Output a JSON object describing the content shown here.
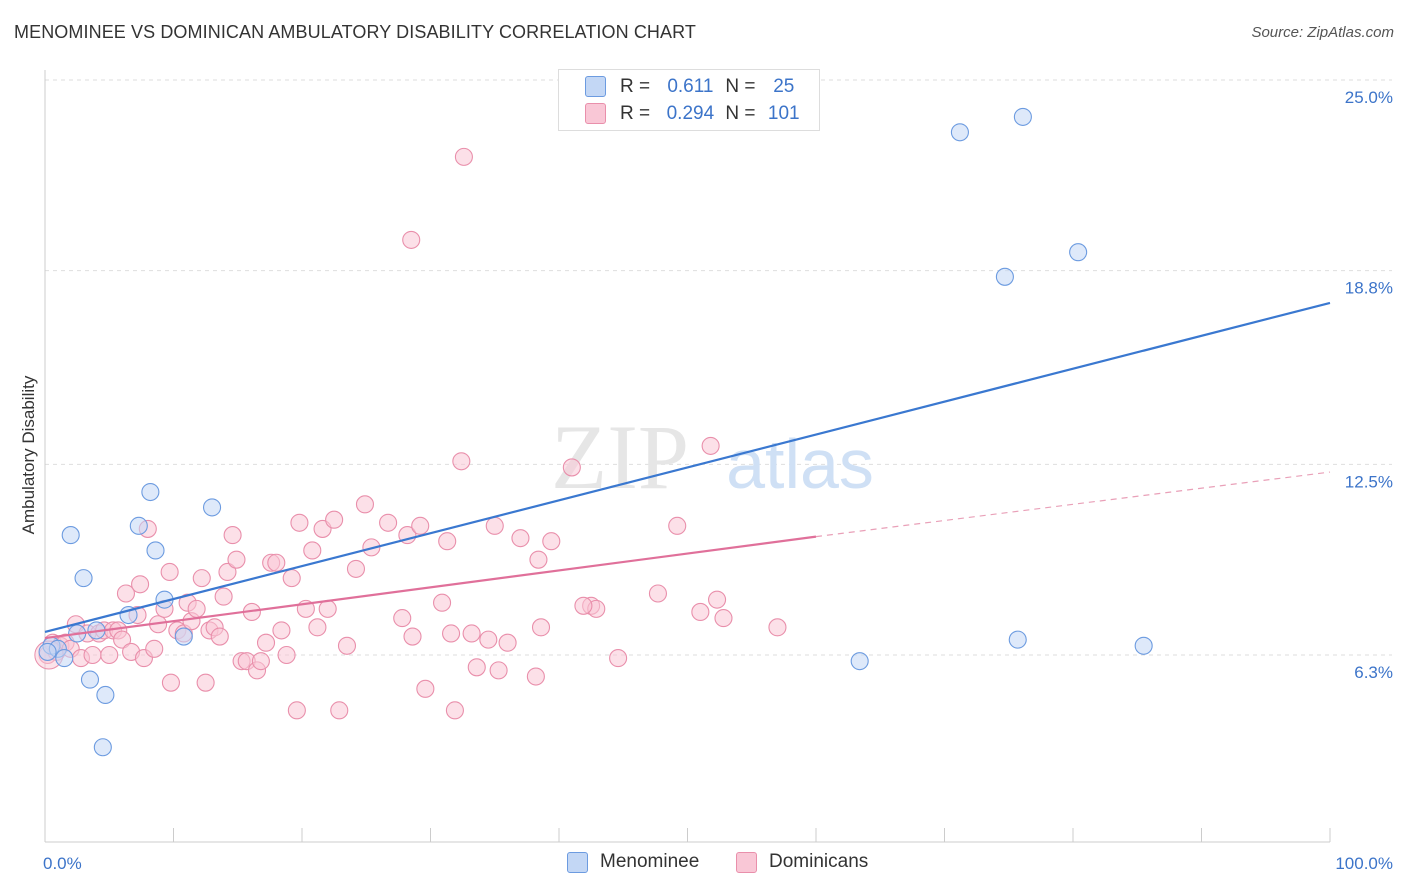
{
  "title": "MENOMINEE VS DOMINICAN AMBULATORY DISABILITY CORRELATION CHART",
  "source": "Source: ZipAtlas.com",
  "watermark": {
    "zip": "ZIP",
    "atlas": "atlas"
  },
  "legend_top": [
    {
      "r_label": "R =",
      "r_value": "0.611",
      "n_label": "N =",
      "n_value": "25",
      "color": "#6c9be0"
    },
    {
      "r_label": "R =",
      "r_value": "0.294",
      "n_label": "N =",
      "n_value": "101",
      "color": "#e98fab"
    }
  ],
  "chart_data": {
    "type": "scatter",
    "title": "MENOMINEE VS DOMINICAN AMBULATORY DISABILITY CORRELATION CHART",
    "xlabel": "",
    "ylabel": "Ambulatory Disability",
    "xlim": [
      0,
      100
    ],
    "ylim": [
      0.6,
      26.2
    ],
    "x_tick_labels": [
      "0.0%",
      "100.0%"
    ],
    "y_ticks": [
      6.3,
      12.5,
      18.8,
      25.0
    ],
    "y_tick_labels": [
      "6.3%",
      "12.5%",
      "18.8%",
      "25.0%"
    ],
    "grid": true,
    "legend_position": "bottom-center",
    "series": [
      {
        "name": "Menominee",
        "color": "#6c9be0",
        "fill": "#c3d7f5",
        "trend": {
          "x": [
            0,
            100
          ],
          "y": [
            7.05,
            17.75
          ],
          "dashed_extension": false
        },
        "points": [
          [
            0.5,
            6.6
          ],
          [
            1.0,
            6.5
          ],
          [
            1.5,
            6.2
          ],
          [
            2.0,
            10.2
          ],
          [
            2.5,
            7.0
          ],
          [
            3.0,
            8.8
          ],
          [
            3.5,
            5.5
          ],
          [
            4.0,
            7.1
          ],
          [
            4.5,
            3.3
          ],
          [
            4.7,
            5.0
          ],
          [
            6.5,
            7.6
          ],
          [
            7.3,
            10.5
          ],
          [
            8.2,
            11.6
          ],
          [
            8.6,
            9.7
          ],
          [
            9.3,
            8.1
          ],
          [
            10.8,
            6.9
          ],
          [
            13.0,
            11.1
          ],
          [
            63.4,
            6.1
          ],
          [
            71.2,
            23.3
          ],
          [
            74.7,
            18.6
          ],
          [
            75.7,
            6.8
          ],
          [
            76.1,
            23.8
          ],
          [
            80.4,
            19.4
          ],
          [
            85.5,
            6.6
          ],
          [
            0.2,
            6.4
          ]
        ]
      },
      {
        "name": "Dominicans",
        "color": "#e98fab",
        "fill": "#f9c7d6",
        "trend": {
          "x": [
            0,
            60
          ],
          "y": [
            6.85,
            10.15
          ],
          "dashed_extension": true,
          "dashed_to": {
            "x": 100,
            "y": 12.25
          }
        },
        "points": [
          [
            0.2,
            6.3
          ],
          [
            0.6,
            6.7
          ],
          [
            0.9,
            6.4
          ],
          [
            1.2,
            6.6
          ],
          [
            1.6,
            6.7
          ],
          [
            2.0,
            6.5
          ],
          [
            2.4,
            7.3
          ],
          [
            2.8,
            6.2
          ],
          [
            3.3,
            7.0
          ],
          [
            3.7,
            6.3
          ],
          [
            4.2,
            7.0
          ],
          [
            4.6,
            7.1
          ],
          [
            5.0,
            6.3
          ],
          [
            5.3,
            7.1
          ],
          [
            5.7,
            7.1
          ],
          [
            6.0,
            6.8
          ],
          [
            6.3,
            8.3
          ],
          [
            6.7,
            6.4
          ],
          [
            7.2,
            7.6
          ],
          [
            7.4,
            8.6
          ],
          [
            7.7,
            6.2
          ],
          [
            8.0,
            10.4
          ],
          [
            8.5,
            6.5
          ],
          [
            8.8,
            7.3
          ],
          [
            9.3,
            7.8
          ],
          [
            9.7,
            9.0
          ],
          [
            9.8,
            5.4
          ],
          [
            10.3,
            7.1
          ],
          [
            10.8,
            7.0
          ],
          [
            11.1,
            8.0
          ],
          [
            11.4,
            7.4
          ],
          [
            11.8,
            7.8
          ],
          [
            12.2,
            8.8
          ],
          [
            12.5,
            5.4
          ],
          [
            12.8,
            7.1
          ],
          [
            13.2,
            7.2
          ],
          [
            13.6,
            6.9
          ],
          [
            13.9,
            8.2
          ],
          [
            14.2,
            9.0
          ],
          [
            14.6,
            10.2
          ],
          [
            14.9,
            9.4
          ],
          [
            15.3,
            6.1
          ],
          [
            15.7,
            6.1
          ],
          [
            16.1,
            7.7
          ],
          [
            16.5,
            5.8
          ],
          [
            16.8,
            6.1
          ],
          [
            17.2,
            6.7
          ],
          [
            17.6,
            9.3
          ],
          [
            18.0,
            9.3
          ],
          [
            18.4,
            7.1
          ],
          [
            18.8,
            6.3
          ],
          [
            19.2,
            8.8
          ],
          [
            19.6,
            4.5
          ],
          [
            19.8,
            10.6
          ],
          [
            20.3,
            7.8
          ],
          [
            20.8,
            9.7
          ],
          [
            21.2,
            7.2
          ],
          [
            21.6,
            10.4
          ],
          [
            22.0,
            7.8
          ],
          [
            22.5,
            10.7
          ],
          [
            22.9,
            4.5
          ],
          [
            23.5,
            6.6
          ],
          [
            24.2,
            9.1
          ],
          [
            24.9,
            11.2
          ],
          [
            25.4,
            9.8
          ],
          [
            26.7,
            10.6
          ],
          [
            27.8,
            7.5
          ],
          [
            28.2,
            10.2
          ],
          [
            28.5,
            19.8
          ],
          [
            29.2,
            10.5
          ],
          [
            29.6,
            5.2
          ],
          [
            30.9,
            8.0
          ],
          [
            31.3,
            10.0
          ],
          [
            31.6,
            7.0
          ],
          [
            31.9,
            4.5
          ],
          [
            32.4,
            12.6
          ],
          [
            32.6,
            22.5
          ],
          [
            33.2,
            7.0
          ],
          [
            33.6,
            5.9
          ],
          [
            34.5,
            6.8
          ],
          [
            35.0,
            10.5
          ],
          [
            35.3,
            5.8
          ],
          [
            36.0,
            6.7
          ],
          [
            37.0,
            10.1
          ],
          [
            38.2,
            5.6
          ],
          [
            38.4,
            9.4
          ],
          [
            38.6,
            7.2
          ],
          [
            39.4,
            10.0
          ],
          [
            41.0,
            12.4
          ],
          [
            42.5,
            7.9
          ],
          [
            42.9,
            7.8
          ],
          [
            44.6,
            6.2
          ],
          [
            47.7,
            8.3
          ],
          [
            49.2,
            10.5
          ],
          [
            51.0,
            7.7
          ],
          [
            51.8,
            13.1
          ],
          [
            52.3,
            8.1
          ],
          [
            52.8,
            7.5
          ],
          [
            57.0,
            7.2
          ],
          [
            41.9,
            7.9
          ],
          [
            28.6,
            6.9
          ]
        ]
      }
    ]
  }
}
